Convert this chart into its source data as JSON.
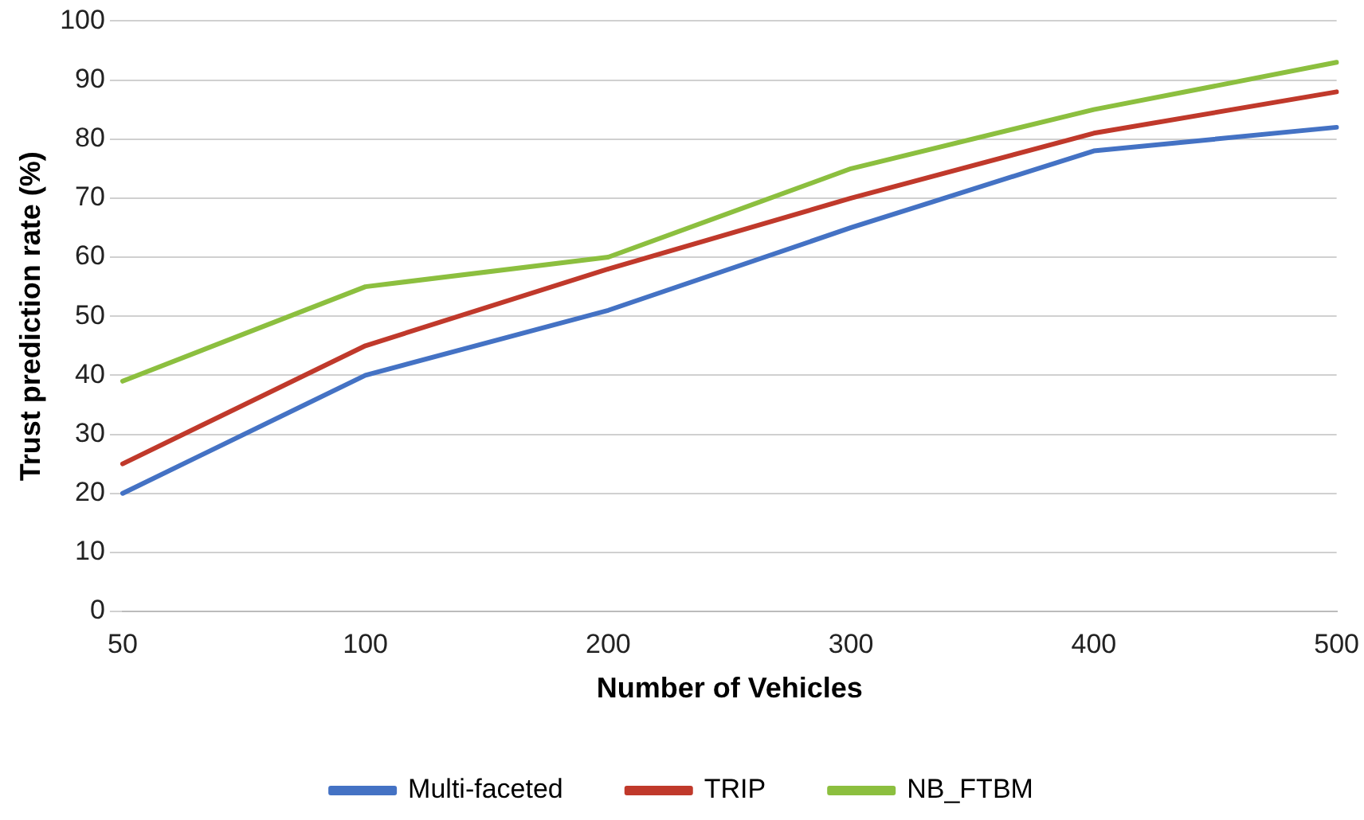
{
  "chart_data": {
    "type": "line",
    "xlabel": "Number of Vehicles",
    "ylabel": "Trust prediction rate (%)",
    "categories": [
      "50",
      "100",
      "200",
      "300",
      "400",
      "500"
    ],
    "series": [
      {
        "name": "Multi-faceted",
        "color": "#4472c4",
        "values": [
          20,
          40,
          51,
          65,
          78,
          82
        ]
      },
      {
        "name": "TRIP",
        "color": "#c0392b",
        "values": [
          25,
          45,
          58,
          70,
          81,
          88
        ]
      },
      {
        "name": "NB_FTBM",
        "color": "#8cbf3f",
        "values": [
          39,
          55,
          60,
          75,
          85,
          93
        ]
      }
    ],
    "ylim": [
      0,
      100
    ],
    "yticks": [
      0,
      10,
      20,
      30,
      40,
      50,
      60,
      70,
      80,
      90,
      100
    ],
    "grid": "y",
    "legend": "bottom",
    "marker": "none",
    "line_style": "solid"
  }
}
